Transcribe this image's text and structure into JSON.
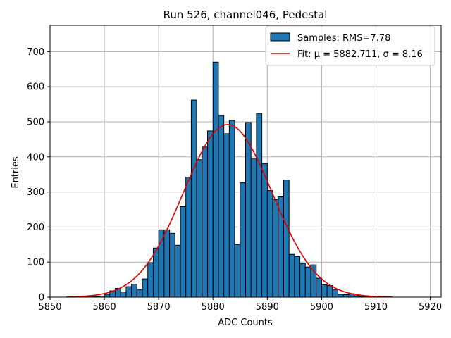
{
  "chart_data": {
    "type": "bar",
    "title": "Run 526, channel046, Pedestal",
    "xlabel": "ADC Counts",
    "ylabel": "Entries",
    "xlim": [
      5850,
      5922
    ],
    "ylim": [
      0,
      775
    ],
    "xticks": [
      5850,
      5860,
      5870,
      5880,
      5890,
      5900,
      5910,
      5920
    ],
    "yticks": [
      0,
      100,
      200,
      300,
      400,
      500,
      600,
      700
    ],
    "grid": true,
    "legend_position": "top-right",
    "bin_width": 1,
    "colors": {
      "bars": "#1f77b4",
      "fit": "#e00000"
    },
    "series": [
      {
        "name": "Samples: RMS=7.78",
        "kind": "histogram",
        "bins": [
          {
            "x": 5856,
            "y": 1
          },
          {
            "x": 5857,
            "y": 2
          },
          {
            "x": 5858,
            "y": 2
          },
          {
            "x": 5859,
            "y": 3
          },
          {
            "x": 5860,
            "y": 8
          },
          {
            "x": 5861,
            "y": 18
          },
          {
            "x": 5862,
            "y": 25
          },
          {
            "x": 5863,
            "y": 15
          },
          {
            "x": 5864,
            "y": 30
          },
          {
            "x": 5865,
            "y": 37
          },
          {
            "x": 5866,
            "y": 22
          },
          {
            "x": 5867,
            "y": 52
          },
          {
            "x": 5868,
            "y": 98
          },
          {
            "x": 5869,
            "y": 140
          },
          {
            "x": 5870,
            "y": 192
          },
          {
            "x": 5871,
            "y": 192
          },
          {
            "x": 5872,
            "y": 182
          },
          {
            "x": 5873,
            "y": 148
          },
          {
            "x": 5874,
            "y": 258
          },
          {
            "x": 5875,
            "y": 342
          },
          {
            "x": 5876,
            "y": 562
          },
          {
            "x": 5877,
            "y": 392
          },
          {
            "x": 5878,
            "y": 428
          },
          {
            "x": 5879,
            "y": 474
          },
          {
            "x": 5880,
            "y": 670
          },
          {
            "x": 5881,
            "y": 518
          },
          {
            "x": 5882,
            "y": 466
          },
          {
            "x": 5883,
            "y": 504
          },
          {
            "x": 5884,
            "y": 150
          },
          {
            "x": 5885,
            "y": 326
          },
          {
            "x": 5886,
            "y": 498
          },
          {
            "x": 5887,
            "y": 396
          },
          {
            "x": 5888,
            "y": 524
          },
          {
            "x": 5889,
            "y": 381
          },
          {
            "x": 5890,
            "y": 304
          },
          {
            "x": 5891,
            "y": 278
          },
          {
            "x": 5892,
            "y": 286
          },
          {
            "x": 5893,
            "y": 334
          },
          {
            "x": 5894,
            "y": 122
          },
          {
            "x": 5895,
            "y": 116
          },
          {
            "x": 5896,
            "y": 96
          },
          {
            "x": 5897,
            "y": 86
          },
          {
            "x": 5898,
            "y": 92
          },
          {
            "x": 5899,
            "y": 54
          },
          {
            "x": 5900,
            "y": 35
          },
          {
            "x": 5901,
            "y": 33
          },
          {
            "x": 5902,
            "y": 22
          },
          {
            "x": 5903,
            "y": 8
          },
          {
            "x": 5904,
            "y": 7
          },
          {
            "x": 5905,
            "y": 10
          },
          {
            "x": 5906,
            "y": 4
          },
          {
            "x": 5907,
            "y": 2
          },
          {
            "x": 5908,
            "y": 1
          },
          {
            "x": 5909,
            "y": 1
          }
        ]
      },
      {
        "name": "Fit: μ = 5882.711, σ = 8.16",
        "kind": "gaussian-fit",
        "mu": 5882.711,
        "sigma": 8.16,
        "amplitude": 492,
        "x_range": [
          5853,
          5913
        ]
      }
    ]
  }
}
